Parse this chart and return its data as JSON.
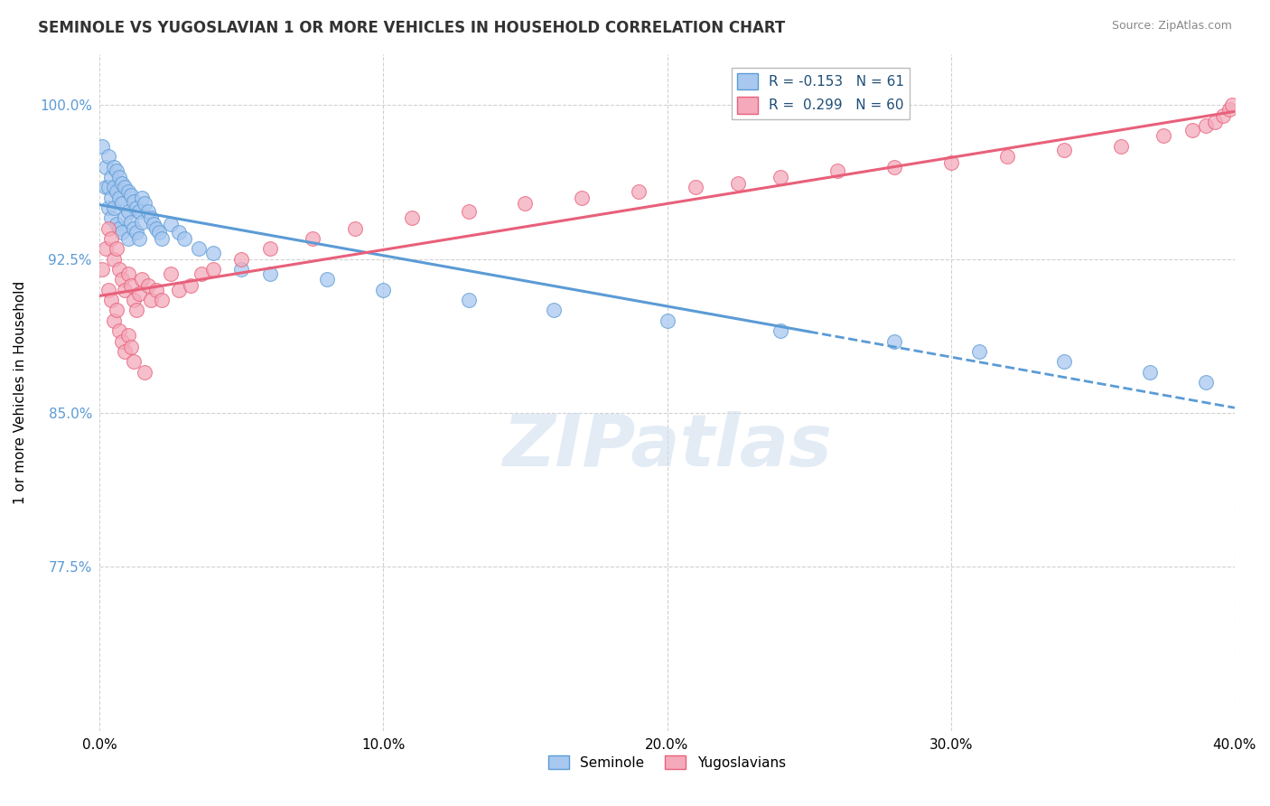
{
  "title": "SEMINOLE VS YUGOSLAVIAN 1 OR MORE VEHICLES IN HOUSEHOLD CORRELATION CHART",
  "source": "Source: ZipAtlas.com",
  "xlabel_seminole": "Seminole",
  "xlabel_yugoslavians": "Yugoslavians",
  "ylabel": "1 or more Vehicles in Household",
  "xmin": 0.0,
  "xmax": 0.4,
  "ymin": 0.695,
  "ymax": 1.025,
  "yticks": [
    0.775,
    0.85,
    0.925,
    1.0
  ],
  "ytick_labels": [
    "77.5%",
    "85.0%",
    "92.5%",
    "100.0%"
  ],
  "xticks": [
    0.0,
    0.1,
    0.2,
    0.3,
    0.4
  ],
  "xtick_labels": [
    "0.0%",
    "10.0%",
    "20.0%",
    "30.0%",
    "40.0%"
  ],
  "seminole_color": "#A8C8F0",
  "yugoslavian_color": "#F4AABB",
  "trend_seminole_color": "#5B9BD5",
  "trend_yugoslavian_color": "#E8607A",
  "R_seminole": -0.153,
  "N_seminole": 61,
  "R_yugoslavian": 0.299,
  "N_yugoslavian": 60,
  "background_color": "#FFFFFF",
  "grid_color": "#CCCCCC",
  "seminole_x": [
    0.001,
    0.002,
    0.002,
    0.003,
    0.003,
    0.003,
    0.004,
    0.004,
    0.004,
    0.005,
    0.005,
    0.005,
    0.006,
    0.006,
    0.006,
    0.007,
    0.007,
    0.007,
    0.008,
    0.008,
    0.008,
    0.009,
    0.009,
    0.01,
    0.01,
    0.01,
    0.011,
    0.011,
    0.012,
    0.012,
    0.013,
    0.013,
    0.014,
    0.014,
    0.015,
    0.015,
    0.016,
    0.017,
    0.018,
    0.019,
    0.02,
    0.021,
    0.022,
    0.025,
    0.028,
    0.03,
    0.035,
    0.04,
    0.05,
    0.06,
    0.08,
    0.1,
    0.13,
    0.16,
    0.2,
    0.24,
    0.28,
    0.31,
    0.34,
    0.37,
    0.39
  ],
  "seminole_y": [
    0.98,
    0.97,
    0.96,
    0.975,
    0.96,
    0.95,
    0.965,
    0.955,
    0.945,
    0.97,
    0.96,
    0.95,
    0.968,
    0.958,
    0.942,
    0.965,
    0.955,
    0.94,
    0.962,
    0.952,
    0.938,
    0.96,
    0.945,
    0.958,
    0.948,
    0.935,
    0.956,
    0.943,
    0.953,
    0.94,
    0.95,
    0.938,
    0.948,
    0.935,
    0.955,
    0.943,
    0.952,
    0.948,
    0.945,
    0.942,
    0.94,
    0.938,
    0.935,
    0.942,
    0.938,
    0.935,
    0.93,
    0.928,
    0.92,
    0.918,
    0.915,
    0.91,
    0.905,
    0.9,
    0.895,
    0.89,
    0.885,
    0.88,
    0.875,
    0.87,
    0.865
  ],
  "yugoslavian_x": [
    0.001,
    0.002,
    0.003,
    0.003,
    0.004,
    0.004,
    0.005,
    0.005,
    0.006,
    0.006,
    0.007,
    0.007,
    0.008,
    0.008,
    0.009,
    0.009,
    0.01,
    0.01,
    0.011,
    0.011,
    0.012,
    0.012,
    0.013,
    0.014,
    0.015,
    0.016,
    0.017,
    0.018,
    0.02,
    0.022,
    0.025,
    0.028,
    0.032,
    0.036,
    0.04,
    0.05,
    0.06,
    0.075,
    0.09,
    0.11,
    0.13,
    0.15,
    0.17,
    0.19,
    0.21,
    0.225,
    0.24,
    0.26,
    0.28,
    0.3,
    0.32,
    0.34,
    0.36,
    0.375,
    0.385,
    0.39,
    0.393,
    0.396,
    0.398,
    0.399
  ],
  "yugoslavian_y": [
    0.92,
    0.93,
    0.94,
    0.91,
    0.935,
    0.905,
    0.925,
    0.895,
    0.93,
    0.9,
    0.92,
    0.89,
    0.915,
    0.885,
    0.91,
    0.88,
    0.918,
    0.888,
    0.912,
    0.882,
    0.905,
    0.875,
    0.9,
    0.908,
    0.915,
    0.87,
    0.912,
    0.905,
    0.91,
    0.905,
    0.918,
    0.91,
    0.912,
    0.918,
    0.92,
    0.925,
    0.93,
    0.935,
    0.94,
    0.945,
    0.948,
    0.952,
    0.955,
    0.958,
    0.96,
    0.962,
    0.965,
    0.968,
    0.97,
    0.972,
    0.975,
    0.978,
    0.98,
    0.985,
    0.988,
    0.99,
    0.992,
    0.995,
    0.998,
    1.0
  ],
  "trend_seminole_x_solid_end": 0.25,
  "watermark_text": "ZIPatlas",
  "legend_label_color": "#1F4E79"
}
